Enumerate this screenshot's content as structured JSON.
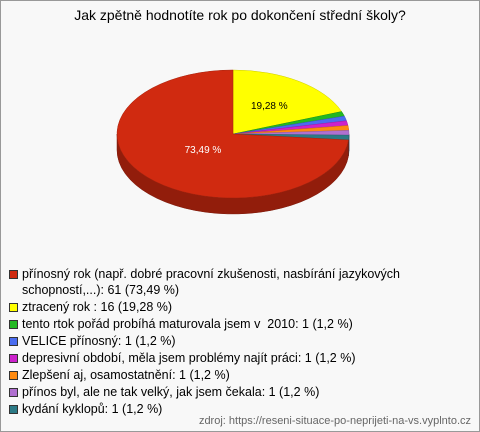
{
  "chart_data": {
    "type": "pie",
    "title": "Jak zpětně hodnotíte rok po dokončení střední školy?",
    "categories": [
      "přínosný rok (např. dobré pracovní zkušenosti, nasbírání jazykových schopností,...): 61 (73,49 %)",
      "ztracený rok : 16 (19,28 %)",
      "tento rtok pořád probíhá maturovala jsem v  2010: 1 (1,2 %)",
      "VELICE přínosný: 1 (1,2 %)",
      "depresivní období, měla jsem problémy najít práci: 1 (1,2 %)",
      "Zlepšení aj, osamostatnění: 1 (1,2 %)",
      "přínos byl, ale ne tak velký, jak jsem čekala: 1 (1,2 %)",
      "kydání kyklopů: 1 (1,2 %)"
    ],
    "values": [
      73.49,
      19.28,
      1.2,
      1.2,
      1.2,
      1.2,
      1.2,
      1.2
    ],
    "value_labels": [
      "73,49 %",
      "19,28 %",
      null,
      null,
      null,
      null,
      null,
      null
    ],
    "colors": [
      "#d02a10",
      "#ffff00",
      "#22b822",
      "#4a6cf0",
      "#cc22cc",
      "#ff8a10",
      "#b070d0",
      "#2c7a86"
    ],
    "source": "zdroj: https://reseni-situace-po-neprijeti-na-vs.vyplnto.cz"
  }
}
